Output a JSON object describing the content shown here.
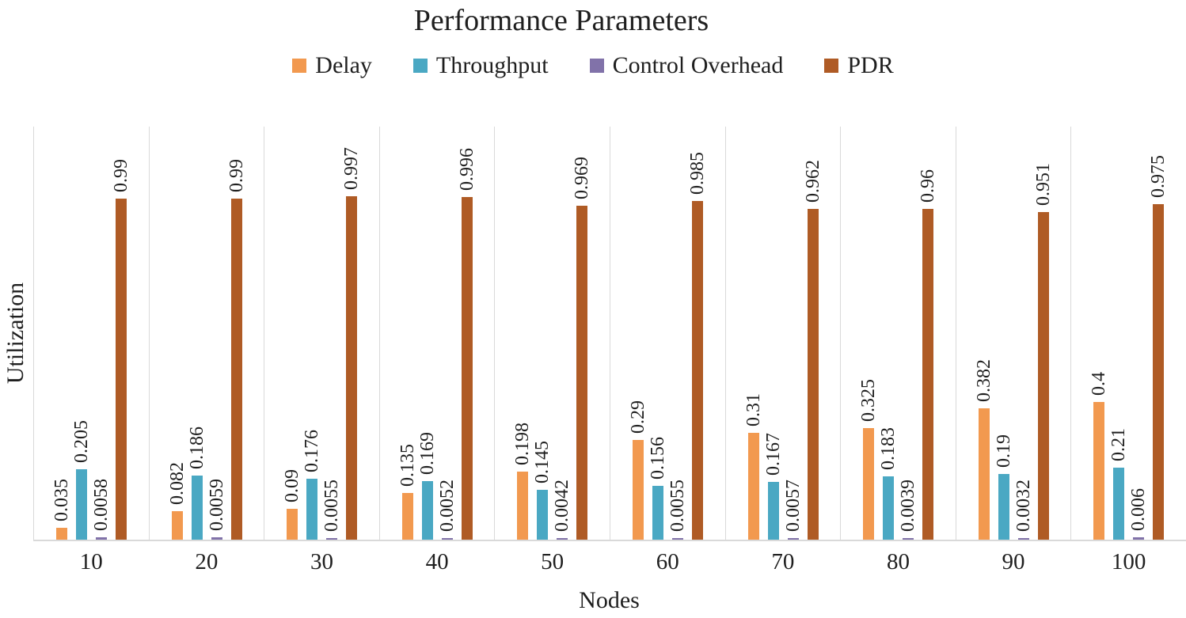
{
  "chart_data": {
    "type": "bar",
    "title": "Performance Parameters",
    "xlabel": "Nodes",
    "ylabel": "Utilization",
    "categories": [
      "10",
      "20",
      "30",
      "40",
      "50",
      "60",
      "70",
      "80",
      "90",
      "100"
    ],
    "series": [
      {
        "name": "Delay",
        "color": "#F2994F",
        "values": [
          "0.035",
          "0.082",
          "0.09",
          "0.135",
          "0.198",
          "0.29",
          "0.31",
          "0.325",
          "0.382",
          "0.4"
        ]
      },
      {
        "name": "Throughput",
        "color": "#4AA8C3",
        "values": [
          "0.205",
          "0.186",
          "0.176",
          "0.169",
          "0.145",
          "0.156",
          "0.167",
          "0.183",
          "0.19",
          "0.21"
        ]
      },
      {
        "name": "Control Overhead",
        "color": "#8172A9",
        "values": [
          "0.0058",
          "0.0059",
          "0.0055",
          "0.0052",
          "0.0042",
          "0.0055",
          "0.0057",
          "0.0039",
          "0.0032",
          "0.006"
        ]
      },
      {
        "name": "PDR",
        "color": "#AF5B25",
        "values": [
          "0.99",
          "0.99",
          "0.997",
          "0.996",
          "0.969",
          "0.985",
          "0.962",
          "0.96",
          "0.951",
          "0.975"
        ]
      }
    ],
    "ylim": [
      0,
      1.2
    ],
    "grid": "vertical-category-separators",
    "legend_position": "top",
    "data_labels": "rotated-90-above-bars",
    "axis_color": "#D9D9D9"
  }
}
